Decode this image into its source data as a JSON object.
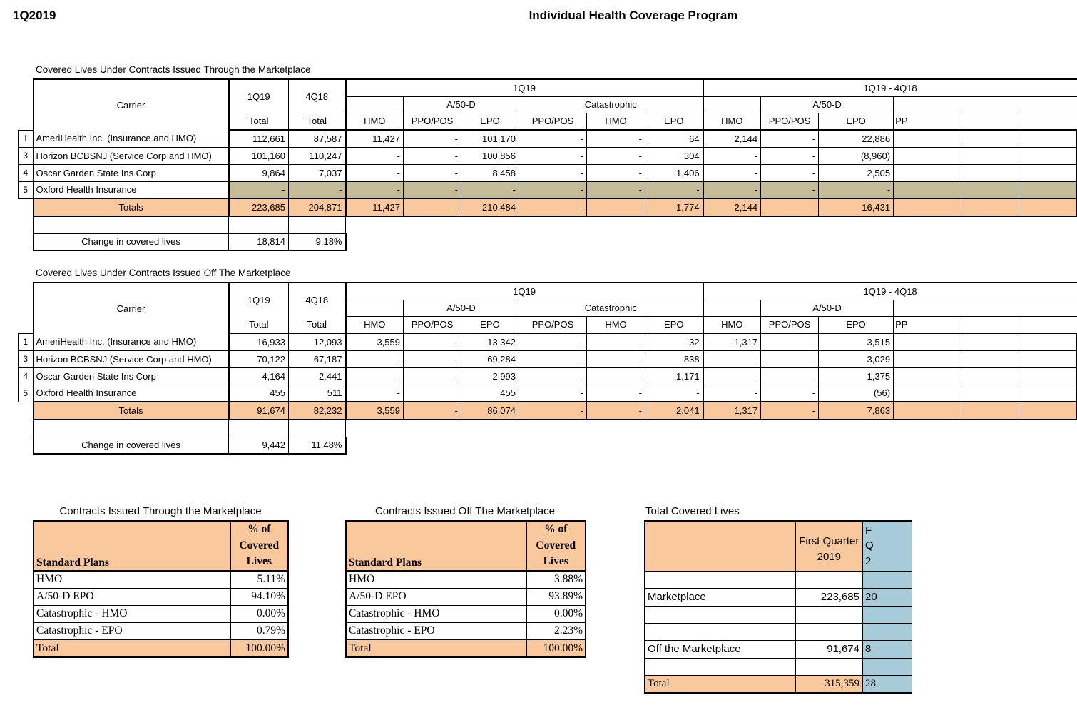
{
  "page": {
    "quarter": "1Q2019",
    "title": "Individual Health Coverage Program"
  },
  "labels": {
    "carrier": "Carrier",
    "q1_col": "1Q19",
    "q4_col": "4Q18",
    "total": "Total",
    "group_current": "1Q19",
    "group_diff": "1Q19 - 4Q18",
    "a50d": "A/50-D",
    "catastrophic": "Catastrophic",
    "hmo": "HMO",
    "ppo_pos": "PPO/POS",
    "epo": "EPO",
    "cut_col_fragment": "PP"
  },
  "marketplace_table": {
    "title": "Covered Lives Under Contracts Issued Through the Marketplace",
    "rows": [
      {
        "num": "1",
        "carrier": "AmeriHealth  Inc. (Insurance and HMO)",
        "shaded": false,
        "values": [
          "112,661",
          "87,587",
          "11,427",
          "-",
          "101,170",
          "-",
          "-",
          "64",
          "2,144",
          "-",
          "22,886",
          ""
        ]
      },
      {
        "num": "3",
        "carrier": "Horizon BCBSNJ (Service Corp and HMO)",
        "shaded": false,
        "values": [
          "101,160",
          "110,247",
          "-",
          "-",
          "100,856",
          "-",
          "-",
          "304",
          "-",
          "-",
          "(8,960)",
          ""
        ]
      },
      {
        "num": "4",
        "carrier": "Oscar Garden State Ins Corp",
        "shaded": false,
        "values": [
          "9,864",
          "7,037",
          "-",
          "-",
          "8,458",
          "-",
          "-",
          "1,406",
          "-",
          "-",
          "2,505",
          ""
        ]
      },
      {
        "num": "5",
        "carrier": "Oxford Health Insurance",
        "shaded": true,
        "values": [
          "-",
          "-",
          "-",
          "-",
          "-",
          "-",
          "-",
          "-",
          "-",
          "-",
          "-",
          ""
        ]
      }
    ],
    "totals_label": "Totals",
    "totals": [
      "223,685",
      "204,871",
      "11,427",
      "-",
      "210,484",
      "-",
      "-",
      "1,774",
      "2,144",
      "-",
      "16,431",
      ""
    ],
    "change_label": "Change in covered lives",
    "change_amount": "18,814",
    "change_percent": "9.18%"
  },
  "off_marketplace_table": {
    "title": "Covered Lives Under Contracts Issued Off The Marketplace",
    "rows": [
      {
        "num": "1",
        "carrier": "AmeriHealth  Inc. (Insurance and HMO)",
        "shaded": false,
        "values": [
          "16,933",
          "12,093",
          "3,559",
          "-",
          "13,342",
          "-",
          "-",
          "32",
          "1,317",
          "-",
          "3,515",
          ""
        ]
      },
      {
        "num": "3",
        "carrier": "Horizon BCBSNJ (Service Corp and HMO)",
        "shaded": false,
        "values": [
          "70,122",
          "67,187",
          "-",
          "-",
          "69,284",
          "-",
          "-",
          "838",
          "-",
          "-",
          "3,029",
          ""
        ]
      },
      {
        "num": "4",
        "carrier": "Oscar Garden State Ins Corp",
        "shaded": false,
        "values": [
          "4,164",
          "2,441",
          "-",
          "-",
          "2,993",
          "-",
          "-",
          "1,171",
          "-",
          "-",
          "1,375",
          ""
        ]
      },
      {
        "num": "5",
        "carrier": "Oxford Health Insurance",
        "shaded": false,
        "values": [
          "455",
          "511",
          "-",
          "",
          "455",
          "-",
          "-",
          "-",
          "-",
          "-",
          "(56)",
          ""
        ]
      }
    ],
    "totals_label": "Totals",
    "totals": [
      "91,674",
      "82,232",
      "3,559",
      "-",
      "86,074",
      "-",
      "-",
      "2,041",
      "1,317",
      "-",
      "7,863",
      ""
    ],
    "change_label": "Change in covered lives",
    "change_amount": "9,442",
    "change_percent": "11.48%"
  },
  "pct_tables": [
    {
      "title": "Contracts Issued Through the Marketplace",
      "header_label": "Standard Plans",
      "header_value": "% of Covered Lives",
      "rows": [
        [
          "HMO",
          "5.11%"
        ],
        [
          "A/50-D EPO",
          "94.10%"
        ],
        [
          "Catastrophic  - HMO",
          "0.00%"
        ],
        [
          "Catastrophic  - EPO",
          "0.79%"
        ]
      ],
      "total_label": "Total",
      "total_value": "100.00%"
    },
    {
      "title": "Contracts Issued Off The Marketplace",
      "header_label": "Standard Plans",
      "header_value": "% of Covered Lives",
      "rows": [
        [
          "HMO",
          "3.88%"
        ],
        [
          "A/50-D EPO",
          "93.89%"
        ],
        [
          "Catastrophic - HMO",
          "0.00%"
        ],
        [
          "Catastrophic - EPO",
          "2.23%"
        ]
      ],
      "total_label": "Total",
      "total_value": "100.00%"
    }
  ],
  "total_covered": {
    "title": "Total Covered Lives",
    "col1_header": "First Quarter 2019",
    "col2_header_fragment": "F\nQ\n2",
    "rows": [
      {
        "label": "",
        "value": "",
        "frag": "",
        "style": "blank"
      },
      {
        "label": "Marketplace",
        "value": "223,685",
        "frag": "20",
        "style": "data"
      },
      {
        "label": "",
        "value": "",
        "frag": "",
        "style": "blank"
      },
      {
        "label": "",
        "value": "",
        "frag": "",
        "style": "blank"
      },
      {
        "label": "Off the Marketplace",
        "value": "91,674",
        "frag": "8",
        "style": "data"
      },
      {
        "label": "",
        "value": "",
        "frag": "",
        "style": "blank"
      },
      {
        "label": "Total",
        "value": "315,359",
        "frag": "28",
        "style": "total"
      }
    ]
  },
  "colors": {
    "orange": "#F9C89C",
    "olive": "#C3BC96",
    "blue": "#A8CBDA"
  }
}
